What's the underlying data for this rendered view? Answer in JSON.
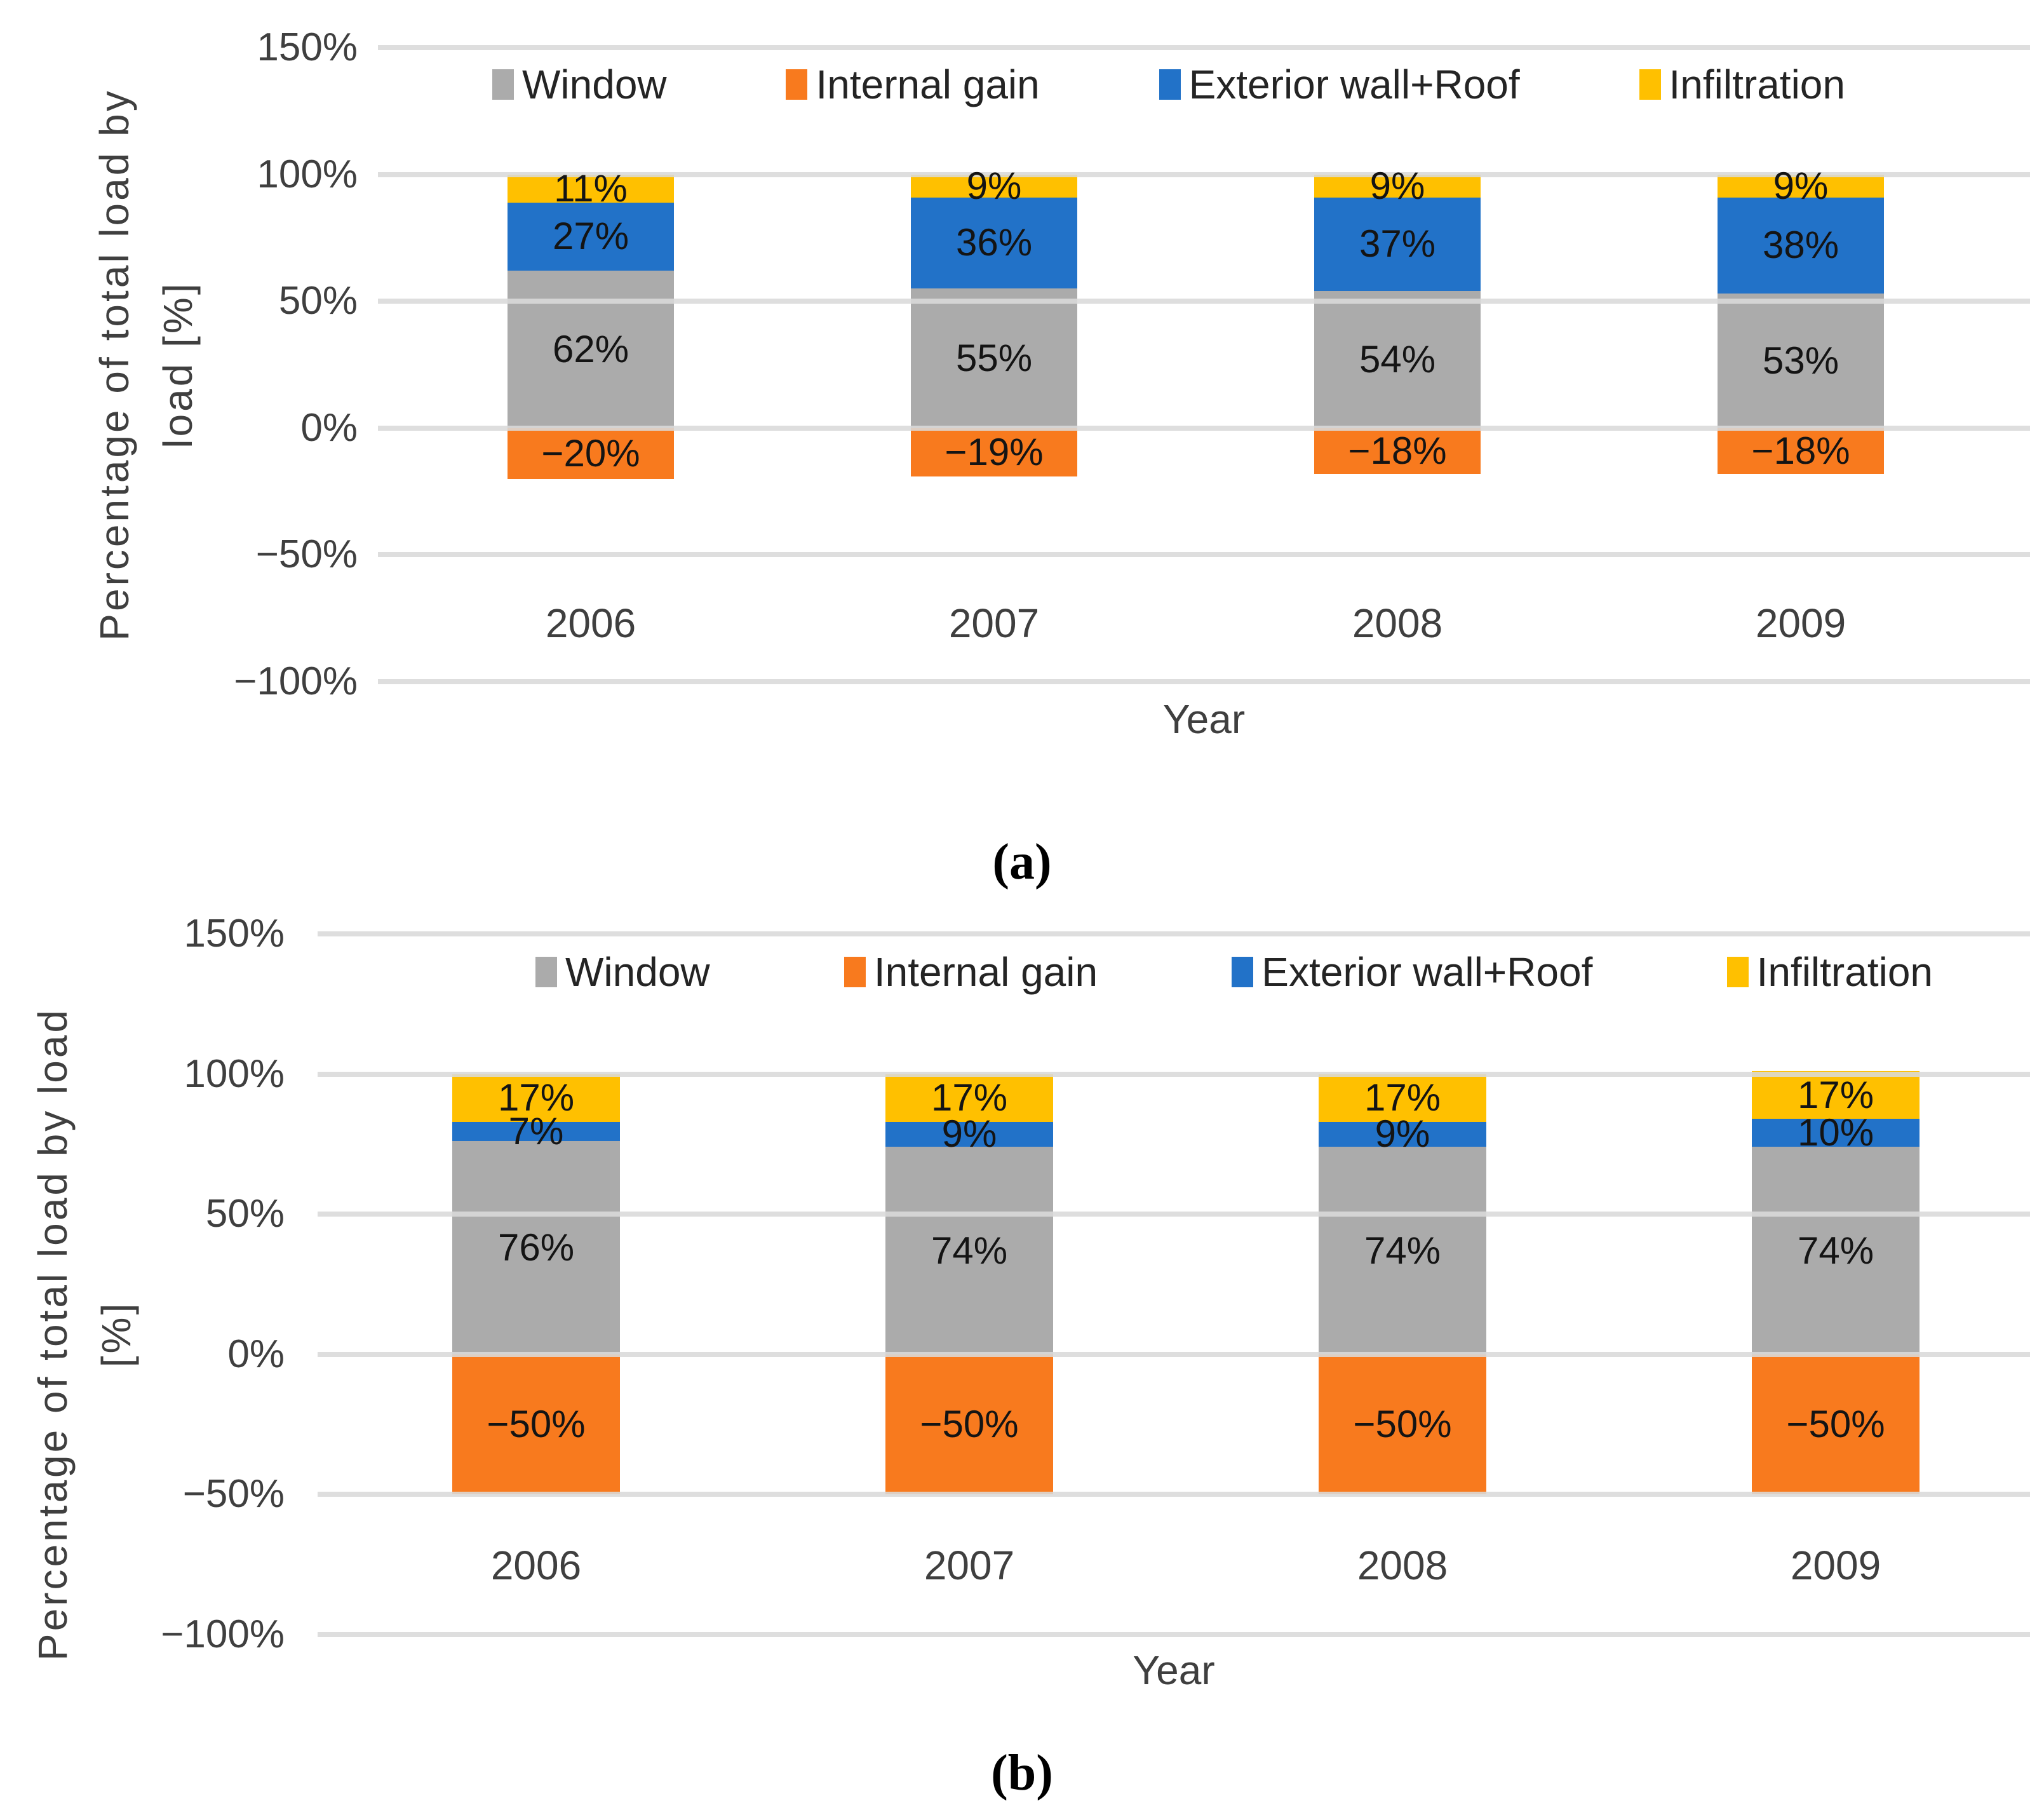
{
  "figure": {
    "background": "#ffffff",
    "gridline_color": "#d9d9d9",
    "text_color": "#3f3f3f",
    "data_label_color": "#141414"
  },
  "chart_data": [
    {
      "id": "a",
      "type": "bar",
      "stacked": true,
      "caption": "(a)",
      "xlabel": "Year",
      "ylabel_lines": [
        "Percentage of total load by",
        "load [%]"
      ],
      "categories": [
        "2006",
        "2007",
        "2008",
        "2009"
      ],
      "series": [
        {
          "name": "Window",
          "color": "#ABABAB",
          "values": [
            62,
            55,
            54,
            53
          ]
        },
        {
          "name": "Internal gain",
          "color": "#F87A1E",
          "values": [
            -20,
            -19,
            -18,
            -18
          ]
        },
        {
          "name": "Exterior wall+Roof",
          "color": "#2272C8",
          "values": [
            27,
            36,
            37,
            38
          ]
        },
        {
          "name": "Infiltration",
          "color": "#FFC000",
          "values": [
            11,
            9,
            9,
            9
          ]
        }
      ],
      "ylim": [
        -100,
        150
      ],
      "yticks": [
        {
          "label": "150%",
          "value": 150
        },
        {
          "label": "100%",
          "value": 100
        },
        {
          "label": "50%",
          "value": 50
        },
        {
          "label": "0%",
          "value": 0
        },
        {
          "label": "−50%",
          "value": -50
        },
        {
          "label": "−100%",
          "value": -100
        }
      ],
      "grid": true,
      "data_labels": true,
      "legend_position": "top-inside"
    },
    {
      "id": "b",
      "type": "bar",
      "stacked": true,
      "caption": "(b)",
      "xlabel": "Year",
      "ylabel_lines": [
        "Percentage of total load by load",
        "[%]"
      ],
      "categories": [
        "2006",
        "2007",
        "2008",
        "2009"
      ],
      "series": [
        {
          "name": "Window",
          "color": "#ABABAB",
          "values": [
            76,
            74,
            74,
            74
          ]
        },
        {
          "name": "Internal gain",
          "color": "#F87A1E",
          "values": [
            -50,
            -50,
            -50,
            -50
          ]
        },
        {
          "name": "Exterior wall+Roof",
          "color": "#2272C8",
          "values": [
            7,
            9,
            9,
            10
          ]
        },
        {
          "name": "Infiltration",
          "color": "#FFC000",
          "values": [
            17,
            17,
            17,
            17
          ]
        }
      ],
      "ylim": [
        -100,
        150
      ],
      "yticks": [
        {
          "label": "150%",
          "value": 150
        },
        {
          "label": "100%",
          "value": 100
        },
        {
          "label": "50%",
          "value": 50
        },
        {
          "label": "0%",
          "value": 0
        },
        {
          "label": "−50%",
          "value": -50
        },
        {
          "label": "−100%",
          "value": -100
        }
      ],
      "grid": true,
      "data_labels": true,
      "legend_position": "top-inside"
    }
  ]
}
